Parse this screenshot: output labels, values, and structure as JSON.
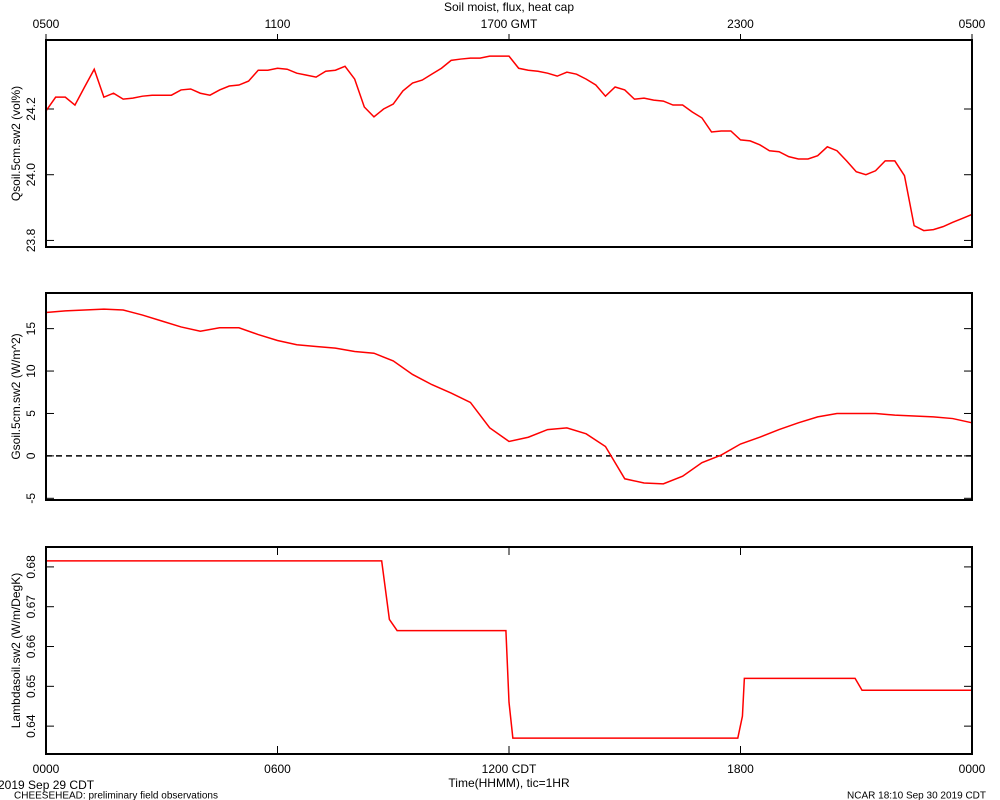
{
  "chart_data": [
    {
      "type": "line",
      "title": "Soil moist, flux, heat cap",
      "ylabel": "Qsoil.5cm.sw2 (vol%)",
      "xlim": [
        0,
        24
      ],
      "ylim": [
        23.78,
        24.41
      ],
      "yticks": [
        23.8,
        {
          "value": 24,
          "label": "24.0"
        },
        24.2
      ],
      "x2ticks": [
        {
          "value": 0,
          "label": "0500"
        },
        {
          "value": 6,
          "label": "1100"
        },
        {
          "value": 12,
          "label": "1700 GMT"
        },
        {
          "value": 18,
          "label": "2300"
        },
        {
          "value": 24,
          "label": "0500"
        }
      ],
      "color": "#ff0000",
      "x": [
        0,
        0.25,
        0.5,
        0.75,
        1,
        1.25,
        1.5,
        1.75,
        2,
        2.25,
        2.5,
        2.75,
        3,
        3.25,
        3.5,
        3.75,
        4,
        4.25,
        4.5,
        4.75,
        5,
        5.25,
        5.5,
        5.75,
        6,
        6.25,
        6.5,
        6.75,
        7,
        7.25,
        7.5,
        7.75,
        8,
        8.25,
        8.5,
        8.75,
        9,
        9.25,
        9.5,
        9.75,
        10,
        10.25,
        10.5,
        10.75,
        11,
        11.25,
        11.5,
        11.75,
        12,
        12.25,
        12.5,
        12.75,
        13,
        13.25,
        13.5,
        13.75,
        14,
        14.25,
        14.5,
        14.75,
        15,
        15.25,
        15.5,
        15.75,
        16,
        16.25,
        16.5,
        16.75,
        17,
        17.25,
        17.5,
        17.75,
        18,
        18.25,
        18.5,
        18.75,
        19,
        19.25,
        19.5,
        19.75,
        20,
        20.25,
        20.5,
        20.75,
        21,
        21.25,
        21.5,
        21.75,
        22,
        22.25,
        22.5,
        22.75,
        23,
        23.25,
        23.5,
        23.75,
        24
      ],
      "values": [
        24.194,
        24.236,
        24.236,
        24.212,
        24.267,
        24.321,
        24.236,
        24.248,
        24.23,
        24.233,
        24.239,
        24.242,
        24.242,
        24.242,
        24.258,
        24.261,
        24.248,
        24.242,
        24.258,
        24.27,
        24.273,
        24.285,
        24.318,
        24.318,
        24.324,
        24.321,
        24.309,
        24.303,
        24.297,
        24.315,
        24.318,
        24.33,
        24.291,
        24.206,
        24.176,
        24.2,
        24.215,
        24.255,
        24.279,
        24.288,
        24.306,
        24.324,
        24.348,
        24.352,
        24.355,
        24.355,
        24.361,
        24.361,
        24.361,
        24.324,
        24.318,
        24.315,
        24.309,
        24.3,
        24.312,
        24.306,
        24.291,
        24.273,
        24.239,
        24.267,
        24.258,
        24.23,
        24.233,
        24.227,
        24.224,
        24.212,
        24.212,
        24.191,
        24.173,
        24.13,
        24.133,
        24.133,
        24.106,
        24.103,
        24.091,
        24.073,
        24.07,
        24.055,
        24.048,
        24.048,
        24.058,
        24.085,
        24.073,
        24.042,
        24.009,
        24.0,
        24.012,
        24.042,
        24.042,
        23.997,
        23.845,
        23.83,
        23.833,
        23.842,
        23.855,
        23.867,
        23.879
      ]
    },
    {
      "type": "line",
      "ylabel": "Gsoil.5cm.sw2 (W/m^2)",
      "xlim": [
        0,
        24
      ],
      "ylim": [
        -5.2,
        19.2
      ],
      "yticks": [
        -5,
        0,
        5,
        10,
        15
      ],
      "reference_line": 0,
      "color": "#ff0000",
      "x": [
        0,
        0.5,
        1,
        1.5,
        2,
        2.5,
        3,
        3.5,
        4,
        4.5,
        5,
        5.5,
        6,
        6.5,
        7,
        7.5,
        8,
        8.5,
        9,
        9.5,
        10,
        10.5,
        11,
        11.5,
        12,
        12.5,
        13,
        13.5,
        14,
        14.5,
        15,
        15.5,
        16,
        16.5,
        17,
        17.5,
        18,
        18.5,
        19,
        19.5,
        20,
        20.5,
        21,
        21.5,
        22,
        22.5,
        23,
        23.5,
        24
      ],
      "values": [
        16.9,
        17.1,
        17.2,
        17.3,
        17.2,
        16.6,
        15.9,
        15.2,
        14.7,
        15.1,
        15.1,
        14.3,
        13.6,
        13.1,
        12.9,
        12.7,
        12.3,
        12.1,
        11.2,
        9.6,
        8.4,
        7.4,
        6.3,
        3.3,
        1.7,
        2.2,
        3.1,
        3.3,
        2.6,
        1.1,
        -2.7,
        -3.2,
        -3.3,
        -2.4,
        -0.8,
        0.1,
        1.4,
        2.2,
        3.1,
        3.9,
        4.6,
        5.0,
        5.0,
        5.0,
        4.8,
        4.7,
        4.6,
        4.4,
        3.9
      ]
    },
    {
      "type": "line",
      "ylabel": "Lambdasoil.sw2 (W/m/DegK)",
      "xlabel": "Time(HHMM), tic=1HR",
      "xlim": [
        0,
        24
      ],
      "ylim": [
        0.633,
        0.685
      ],
      "yticks": [
        0.64,
        0.65,
        0.66,
        0.67,
        0.68
      ],
      "xticks": [
        {
          "value": 0,
          "label": "0000"
        },
        {
          "value": 6,
          "label": "0600"
        },
        {
          "value": 12,
          "label": "1200 CDT"
        },
        {
          "value": 18,
          "label": "1800"
        },
        {
          "value": 24,
          "label": "0000"
        }
      ],
      "color": "#ff0000",
      "x": [
        0,
        8.7,
        8.9,
        9.1,
        11.92,
        12.0,
        12.1,
        17.93,
        18.05,
        18.1,
        20.97,
        21.15,
        24
      ],
      "values": [
        0.6815,
        0.6815,
        0.6668,
        0.664,
        0.664,
        0.646,
        0.637,
        0.637,
        0.6425,
        0.652,
        0.652,
        0.649,
        0.649
      ]
    }
  ],
  "footer": {
    "date": "2019 Sep 29 CDT",
    "project": "CHEESEHEAD: preliminary field observations",
    "credit": "NCAR 18:10 Sep 30 2019 CDT"
  }
}
